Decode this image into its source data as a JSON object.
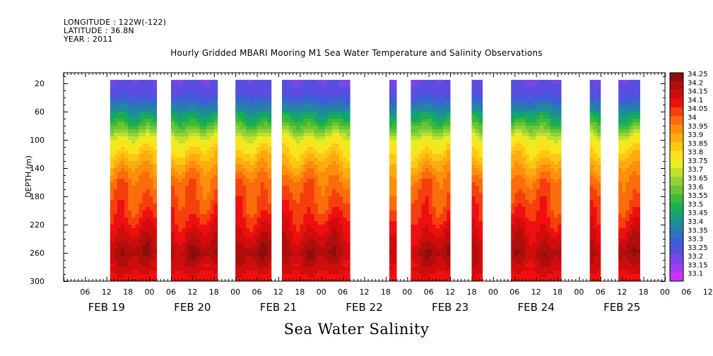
{
  "header": {
    "longitude": "LONGITUDE : 122W(-122)",
    "latitude": "LATITUDE : 36.8N",
    "year": "YEAR : 2011"
  },
  "chart_data": {
    "type": "heatmap",
    "title": "Hourly Gridded MBARI Mooring M1 Sea Water Temperature and Salinity Observations",
    "bottom_title": "Sea Water Salinity",
    "ylabel": "DEPTH (m)",
    "xlabel": "",
    "y_ticks": [
      20,
      60,
      100,
      140,
      180,
      220,
      260,
      300
    ],
    "ylim": [
      300,
      5
    ],
    "x_hour_ticks": [
      "06",
      "12",
      "18",
      "00",
      "06",
      "12",
      "18",
      "00",
      "06",
      "12",
      "18",
      "00",
      "06",
      "12",
      "18",
      "00",
      "06",
      "12",
      "18",
      "00",
      "06",
      "12",
      "18",
      "00",
      "06",
      "12",
      "18",
      "00",
      "06",
      "12",
      "18",
      "00"
    ],
    "x_day_labels": [
      "FEB 19",
      "FEB 20",
      "FEB 21",
      "FEB 22",
      "FEB 23",
      "FEB 24",
      "FEB 25"
    ],
    "xlim_hours": [
      0,
      168
    ],
    "colorbar": {
      "levels": [
        33.1,
        33.15,
        33.2,
        33.25,
        33.3,
        33.35,
        33.4,
        33.45,
        33.5,
        33.55,
        33.6,
        33.65,
        33.7,
        33.75,
        33.8,
        33.85,
        33.9,
        33.95,
        34,
        34.05,
        34.1,
        34.15,
        34.2,
        34.25
      ],
      "colors": [
        "#cc33ff",
        "#a23cf0",
        "#7a46ea",
        "#5a4ee0",
        "#3c5ed8",
        "#2e74b8",
        "#21889e",
        "#16a07a",
        "#19ad55",
        "#3cb83a",
        "#6ac535",
        "#92d137",
        "#c0df2e",
        "#ecec22",
        "#fde31c",
        "#fdc814",
        "#fdac10",
        "#fd8f0c",
        "#fb6d0c",
        "#f5400e",
        "#ee1010",
        "#d10c0c",
        "#b00d0d",
        "#8f0d0d"
      ],
      "label_levels": [
        "34.25",
        "34.2",
        "34.15",
        "34.1",
        "34.05",
        "34",
        "33.95",
        "33.9",
        "33.85",
        "33.8",
        "33.75",
        "33.7",
        "33.65",
        "33.6",
        "33.55",
        "33.5",
        "33.45",
        "33.4",
        "33.35",
        "33.3",
        "33.25",
        "33.2",
        "33.15",
        "33.1"
      ]
    },
    "data_segments_hours": [
      [
        13,
        26
      ],
      [
        30,
        43
      ],
      [
        48,
        58
      ],
      [
        61,
        80
      ],
      [
        91,
        93
      ],
      [
        97,
        108
      ],
      [
        114,
        117
      ],
      [
        125,
        139
      ],
      [
        147,
        150
      ],
      [
        155,
        161
      ]
    ],
    "depth_profile": [
      {
        "depth": 20,
        "salinity": 33.25
      },
      {
        "depth": 40,
        "salinity": 33.3
      },
      {
        "depth": 60,
        "salinity": 33.45
      },
      {
        "depth": 80,
        "salinity": 33.6
      },
      {
        "depth": 100,
        "salinity": 33.78
      },
      {
        "depth": 120,
        "salinity": 33.87
      },
      {
        "depth": 140,
        "salinity": 33.95
      },
      {
        "depth": 160,
        "salinity": 34.02
      },
      {
        "depth": 200,
        "salinity": 34.08
      },
      {
        "depth": 220,
        "salinity": 34.13
      },
      {
        "depth": 240,
        "salinity": 34.18
      },
      {
        "depth": 260,
        "salinity": 34.23
      },
      {
        "depth": 280,
        "salinity": 34.17
      },
      {
        "depth": 300,
        "salinity": 34.12
      }
    ]
  }
}
